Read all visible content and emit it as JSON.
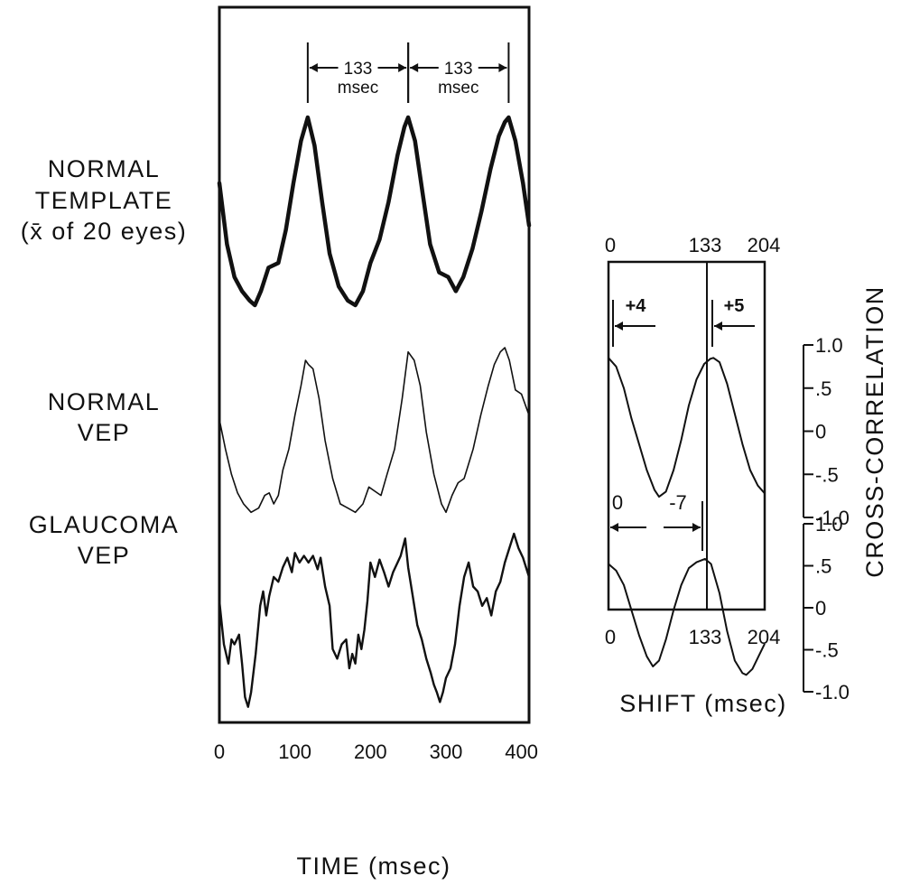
{
  "chart_data": [
    {
      "type": "line",
      "xlabel": "TIME (msec)",
      "xlim": [
        0,
        410
      ],
      "x_ticks": [
        "0",
        "100",
        "200",
        "300",
        "400"
      ],
      "row_labels": [
        [
          "NORMAL",
          "TEMPLATE",
          "(x̄ of 20 eyes)"
        ],
        [
          "NORMAL",
          "VEP"
        ],
        [
          "GLAUCOMA",
          "VEP"
        ]
      ],
      "annotations": [
        {
          "text": "133",
          "unit": "msec",
          "x_from": 117,
          "x_to": 250
        },
        {
          "text": "133",
          "unit": "msec",
          "x_from": 250,
          "x_to": 383
        }
      ],
      "series": [
        {
          "stroke_width": 4.5,
          "x": [
            0,
            10,
            20,
            30,
            40,
            47,
            55,
            65,
            78,
            88,
            98,
            108,
            117,
            126,
            136,
            146,
            158,
            170,
            180,
            190,
            200,
            212,
            224,
            236,
            245,
            250,
            259,
            269,
            279,
            291,
            303,
            313,
            323,
            335,
            347,
            359,
            370,
            378,
            383,
            392,
            402,
            410
          ],
          "y": [
            0.3,
            -0.35,
            -0.7,
            -0.85,
            -0.95,
            -1.0,
            -0.85,
            -0.6,
            -0.55,
            -0.2,
            0.3,
            0.75,
            1.0,
            0.7,
            0.1,
            -0.45,
            -0.8,
            -0.95,
            -1.0,
            -0.85,
            -0.55,
            -0.3,
            0.1,
            0.6,
            0.9,
            1.0,
            0.75,
            0.2,
            -0.35,
            -0.65,
            -0.7,
            -0.85,
            -0.7,
            -0.4,
            0.0,
            0.45,
            0.8,
            0.95,
            1.0,
            0.75,
            0.3,
            -0.15
          ]
        },
        {
          "stroke_width": 1.6,
          "x": [
            0,
            8,
            16,
            24,
            32,
            42,
            52,
            60,
            66,
            72,
            78,
            84,
            92,
            100,
            108,
            114,
            118,
            124,
            132,
            140,
            150,
            160,
            170,
            180,
            190,
            198,
            206,
            214,
            222,
            232,
            242,
            250,
            258,
            266,
            274,
            284,
            294,
            300,
            308,
            316,
            324,
            336,
            346,
            356,
            364,
            372,
            378,
            384,
            392,
            400,
            410
          ],
          "y": [
            0.15,
            -0.2,
            -0.5,
            -0.72,
            -0.85,
            -0.95,
            -0.9,
            -0.75,
            -0.72,
            -0.85,
            -0.75,
            -0.45,
            -0.2,
            0.2,
            0.55,
            0.85,
            0.8,
            0.75,
            0.4,
            -0.1,
            -0.55,
            -0.85,
            -0.9,
            -0.95,
            -0.85,
            -0.65,
            -0.7,
            -0.75,
            -0.5,
            -0.2,
            0.4,
            0.95,
            0.85,
            0.55,
            0.0,
            -0.5,
            -0.85,
            -0.95,
            -0.75,
            -0.6,
            -0.55,
            -0.2,
            0.2,
            0.55,
            0.8,
            0.95,
            1.0,
            0.85,
            0.5,
            0.45,
            0.2
          ]
        },
        {
          "stroke_width": 2.4,
          "x": [
            0,
            6,
            12,
            16,
            20,
            26,
            30,
            34,
            38,
            42,
            48,
            54,
            58,
            62,
            66,
            72,
            78,
            84,
            90,
            96,
            100,
            106,
            112,
            118,
            124,
            130,
            134,
            140,
            146,
            150,
            156,
            162,
            168,
            172,
            176,
            180,
            184,
            188,
            192,
            196,
            200,
            206,
            212,
            218,
            224,
            230,
            236,
            240,
            246,
            250,
            256,
            262,
            268,
            274,
            280,
            284,
            288,
            292,
            296,
            300,
            306,
            312,
            318,
            324,
            330,
            336,
            342,
            348,
            354,
            360,
            366,
            372,
            378,
            384,
            390,
            396,
            402,
            410
          ],
          "y": [
            0.15,
            -0.3,
            -0.5,
            -0.25,
            -0.3,
            -0.2,
            -0.5,
            -0.85,
            -0.95,
            -0.8,
            -0.4,
            0.1,
            0.25,
            0.0,
            0.2,
            0.4,
            0.35,
            0.5,
            0.6,
            0.45,
            0.65,
            0.55,
            0.62,
            0.55,
            0.62,
            0.48,
            0.6,
            0.3,
            0.1,
            -0.35,
            -0.45,
            -0.3,
            -0.25,
            -0.55,
            -0.4,
            -0.5,
            -0.2,
            -0.35,
            -0.15,
            0.15,
            0.55,
            0.4,
            0.58,
            0.45,
            0.3,
            0.45,
            0.55,
            0.62,
            0.8,
            0.5,
            0.2,
            -0.1,
            -0.25,
            -0.45,
            -0.6,
            -0.72,
            -0.8,
            -0.9,
            -0.8,
            -0.65,
            -0.55,
            -0.3,
            0.1,
            0.4,
            0.55,
            0.3,
            0.25,
            0.1,
            0.18,
            0.0,
            0.25,
            0.35,
            0.55,
            0.7,
            0.85,
            0.7,
            0.6,
            0.4
          ]
        }
      ]
    },
    {
      "type": "line",
      "xlabel": "SHIFT (msec)",
      "ylabel": "CROSS-CORRELATION",
      "xlim": [
        0,
        204
      ],
      "ylim": [
        -1.0,
        1.0
      ],
      "x_ticks": [
        "0",
        "133",
        "204"
      ],
      "y_ticks": [
        "1.0",
        ".5",
        "0",
        "-.5",
        "-1.0"
      ],
      "vertical_line_x": 133,
      "annotations": [
        {
          "text": "+4"
        },
        {
          "text": "+5"
        },
        {
          "text": "0"
        },
        {
          "text": "-7"
        }
      ],
      "series": [
        {
          "x": [
            0,
            10,
            20,
            30,
            40,
            50,
            60,
            66,
            75,
            85,
            95,
            105,
            115,
            125,
            133,
            137,
            145,
            155,
            165,
            175,
            185,
            195,
            204
          ],
          "y": [
            0.85,
            0.75,
            0.5,
            0.15,
            -0.15,
            -0.45,
            -0.68,
            -0.76,
            -0.7,
            -0.45,
            -0.1,
            0.3,
            0.6,
            0.78,
            0.84,
            0.85,
            0.8,
            0.55,
            0.2,
            -0.15,
            -0.45,
            -0.63,
            -0.72
          ]
        },
        {
          "x": [
            0,
            10,
            20,
            30,
            40,
            50,
            58,
            66,
            75,
            85,
            95,
            105,
            115,
            126,
            134,
            145,
            155,
            165,
            175,
            180,
            188,
            196,
            204
          ],
          "y": [
            0.5,
            0.42,
            0.25,
            -0.05,
            -0.35,
            -0.6,
            -0.72,
            -0.65,
            -0.4,
            -0.05,
            0.25,
            0.45,
            0.52,
            0.56,
            0.5,
            0.15,
            -0.3,
            -0.65,
            -0.8,
            -0.82,
            -0.75,
            -0.6,
            -0.45
          ]
        }
      ]
    }
  ]
}
